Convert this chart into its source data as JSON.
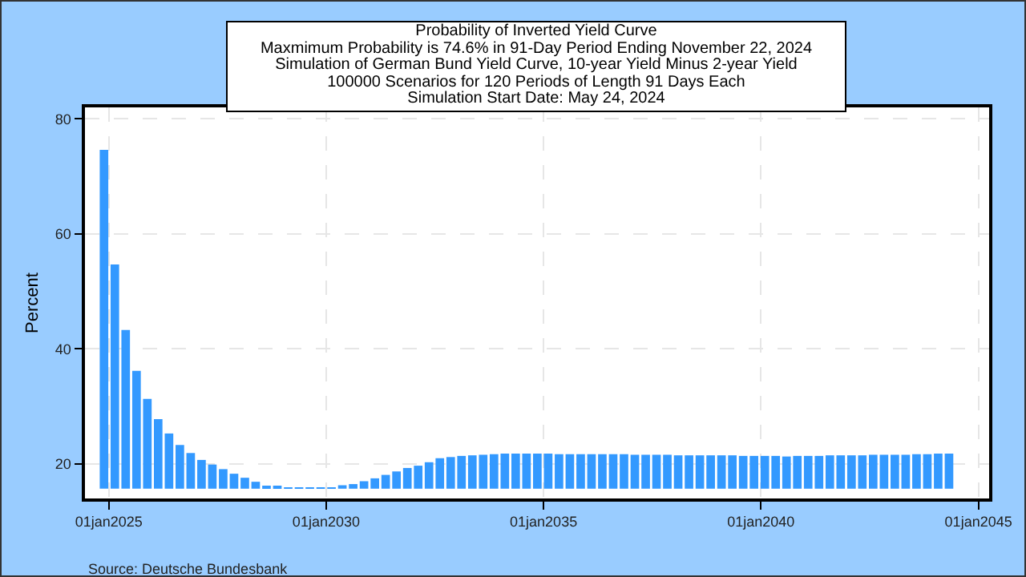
{
  "chart_data": {
    "type": "bar",
    "title": "Probability of Inverted Yield Curve",
    "subtitle": "Maxmimum Probability is 74.6% in 91-Day Period Ending November 22, 2024\nSimulation of German Bund Yield Curve, 10-year Yield Minus 2-year Yield\n100000 Scenarios for 120 Periods of Length 91 Days Each\nSimulation Start Date: May 24, 2024",
    "ylabel": "Percent",
    "annotations": [
      "Source: Deutsche Bundesbank"
    ],
    "color": "#3399ff",
    "x": [
      "2024-11-22",
      "2025-02-21",
      "2025-05-23",
      "2025-08-22",
      "2025-11-21",
      "2026-02-20",
      "2026-05-22",
      "2026-08-21",
      "2026-11-20",
      "2027-02-19",
      "2027-05-21",
      "2027-08-20",
      "2027-11-19",
      "2028-02-18",
      "2028-05-19",
      "2028-08-18",
      "2028-11-17",
      "2029-02-16",
      "2029-05-18",
      "2029-08-17",
      "2029-11-16",
      "2030-02-15",
      "2030-05-17",
      "2030-08-16",
      "2030-11-15",
      "2031-02-14",
      "2031-05-16",
      "2031-08-15",
      "2031-11-14",
      "2032-02-13",
      "2032-05-14",
      "2032-08-13",
      "2032-11-12",
      "2033-02-11",
      "2033-05-13",
      "2033-08-12",
      "2033-11-11",
      "2034-02-10",
      "2034-05-12",
      "2034-08-11",
      "2034-11-10",
      "2035-02-09",
      "2035-05-11",
      "2035-08-10",
      "2035-11-09",
      "2036-02-08",
      "2036-05-09",
      "2036-08-08",
      "2036-11-07",
      "2037-02-06",
      "2037-05-08",
      "2037-08-07",
      "2037-11-06",
      "2038-02-05",
      "2038-05-07",
      "2038-08-06",
      "2038-11-05",
      "2039-02-04",
      "2039-05-06",
      "2039-08-05",
      "2039-11-04",
      "2040-02-03",
      "2040-05-04",
      "2040-08-03",
      "2040-11-02",
      "2041-02-01",
      "2041-05-03",
      "2041-08-02",
      "2041-11-01",
      "2042-01-31",
      "2042-05-02",
      "2042-08-01",
      "2042-10-31",
      "2043-01-30",
      "2043-05-01",
      "2043-07-31",
      "2043-10-30",
      "2044-01-29",
      "2044-04-29"
    ],
    "values": [
      58.9,
      39.0,
      27.6,
      20.5,
      15.6,
      12.1,
      9.6,
      7.6,
      6.2,
      5.0,
      4.2,
      3.4,
      2.6,
      1.9,
      1.2,
      0.5,
      0.3,
      0.1,
      0.1,
      0.1,
      0.1,
      0.2,
      0.6,
      0.8,
      1.3,
      1.8,
      2.4,
      3.0,
      3.6,
      4.0,
      4.6,
      5.3,
      5.5,
      5.7,
      5.8,
      5.9,
      6.0,
      6.1,
      6.1,
      6.1,
      6.1,
      6.1,
      6.0,
      6.0,
      6.0,
      6.0,
      6.0,
      6.0,
      6.0,
      5.9,
      5.9,
      5.9,
      5.9,
      5.8,
      5.8,
      5.8,
      5.8,
      5.8,
      5.8,
      5.7,
      5.7,
      5.7,
      5.7,
      5.6,
      5.7,
      5.7,
      5.7,
      5.8,
      5.8,
      5.8,
      5.8,
      5.9,
      5.9,
      5.9,
      5.9,
      6.0,
      6.0,
      6.1,
      6.1
    ],
    "base": [
      15.7,
      15.7,
      15.7,
      15.7,
      15.7,
      15.7,
      15.7,
      15.7,
      15.7,
      15.7,
      15.7,
      15.7,
      15.7,
      15.7,
      15.7,
      15.7,
      15.7,
      15.7,
      15.7,
      15.7,
      15.7,
      15.7,
      15.7,
      15.7,
      15.7,
      15.7,
      15.7,
      15.7,
      15.7,
      15.7,
      15.7,
      15.7,
      15.7,
      15.7,
      15.7,
      15.7,
      15.7,
      15.7,
      15.7,
      15.7,
      15.7,
      15.7,
      15.7,
      15.7,
      15.7,
      15.7,
      15.7,
      15.7,
      15.7,
      15.7,
      15.7,
      15.7,
      15.7,
      15.7,
      15.7,
      15.7,
      15.7,
      15.7,
      15.7,
      15.7,
      15.7,
      15.7,
      15.7,
      15.7,
      15.7,
      15.7,
      15.7,
      15.7,
      15.7,
      15.7,
      15.7,
      15.7,
      15.7,
      15.7,
      15.7,
      15.7,
      15.7,
      15.7,
      15.7
    ],
    "xlim": [
      "2024-06-15",
      "2045-04-01"
    ],
    "xticks": [
      {
        "value": "2025-01-01",
        "label": "01jan2025"
      },
      {
        "value": "2030-01-01",
        "label": "01jan2030"
      },
      {
        "value": "2035-01-01",
        "label": "01jan2035"
      },
      {
        "value": "2040-01-01",
        "label": "01jan2040"
      },
      {
        "value": "2045-01-01",
        "label": "01jan2045"
      }
    ],
    "ylim": [
      14,
      82
    ],
    "yticks": [
      20,
      40,
      60,
      80
    ],
    "grid": true
  }
}
